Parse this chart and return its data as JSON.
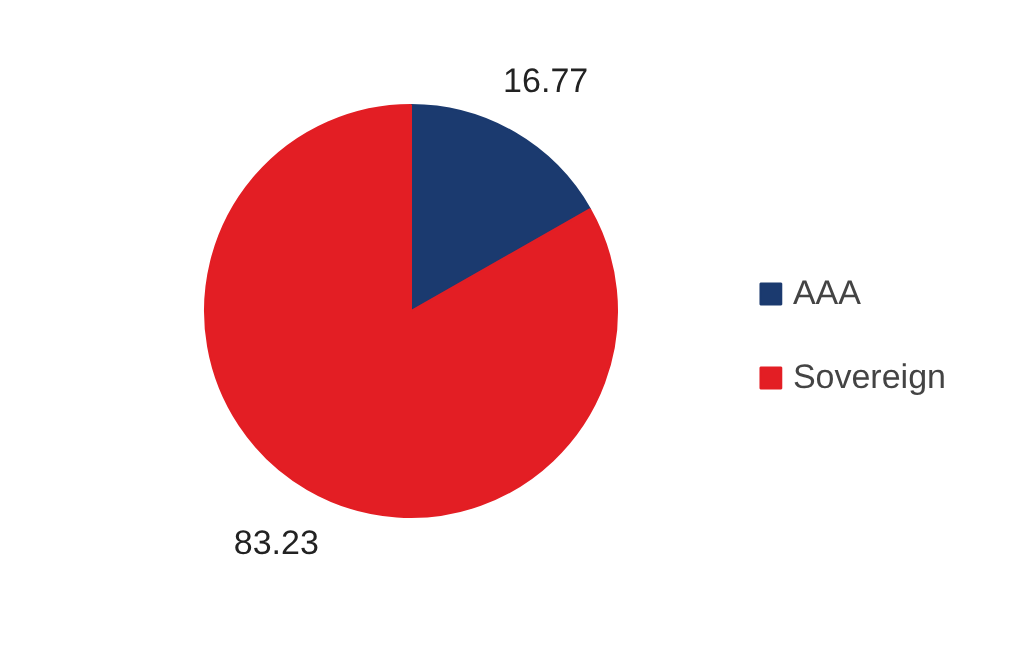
{
  "chart_data": {
    "type": "pie",
    "categories": [
      "AAA",
      "Sovereign"
    ],
    "values": [
      16.77,
      83.23
    ],
    "colors": [
      "#1b3a6f",
      "#e31e24"
    ],
    "data_labels": true,
    "legend": "right"
  }
}
